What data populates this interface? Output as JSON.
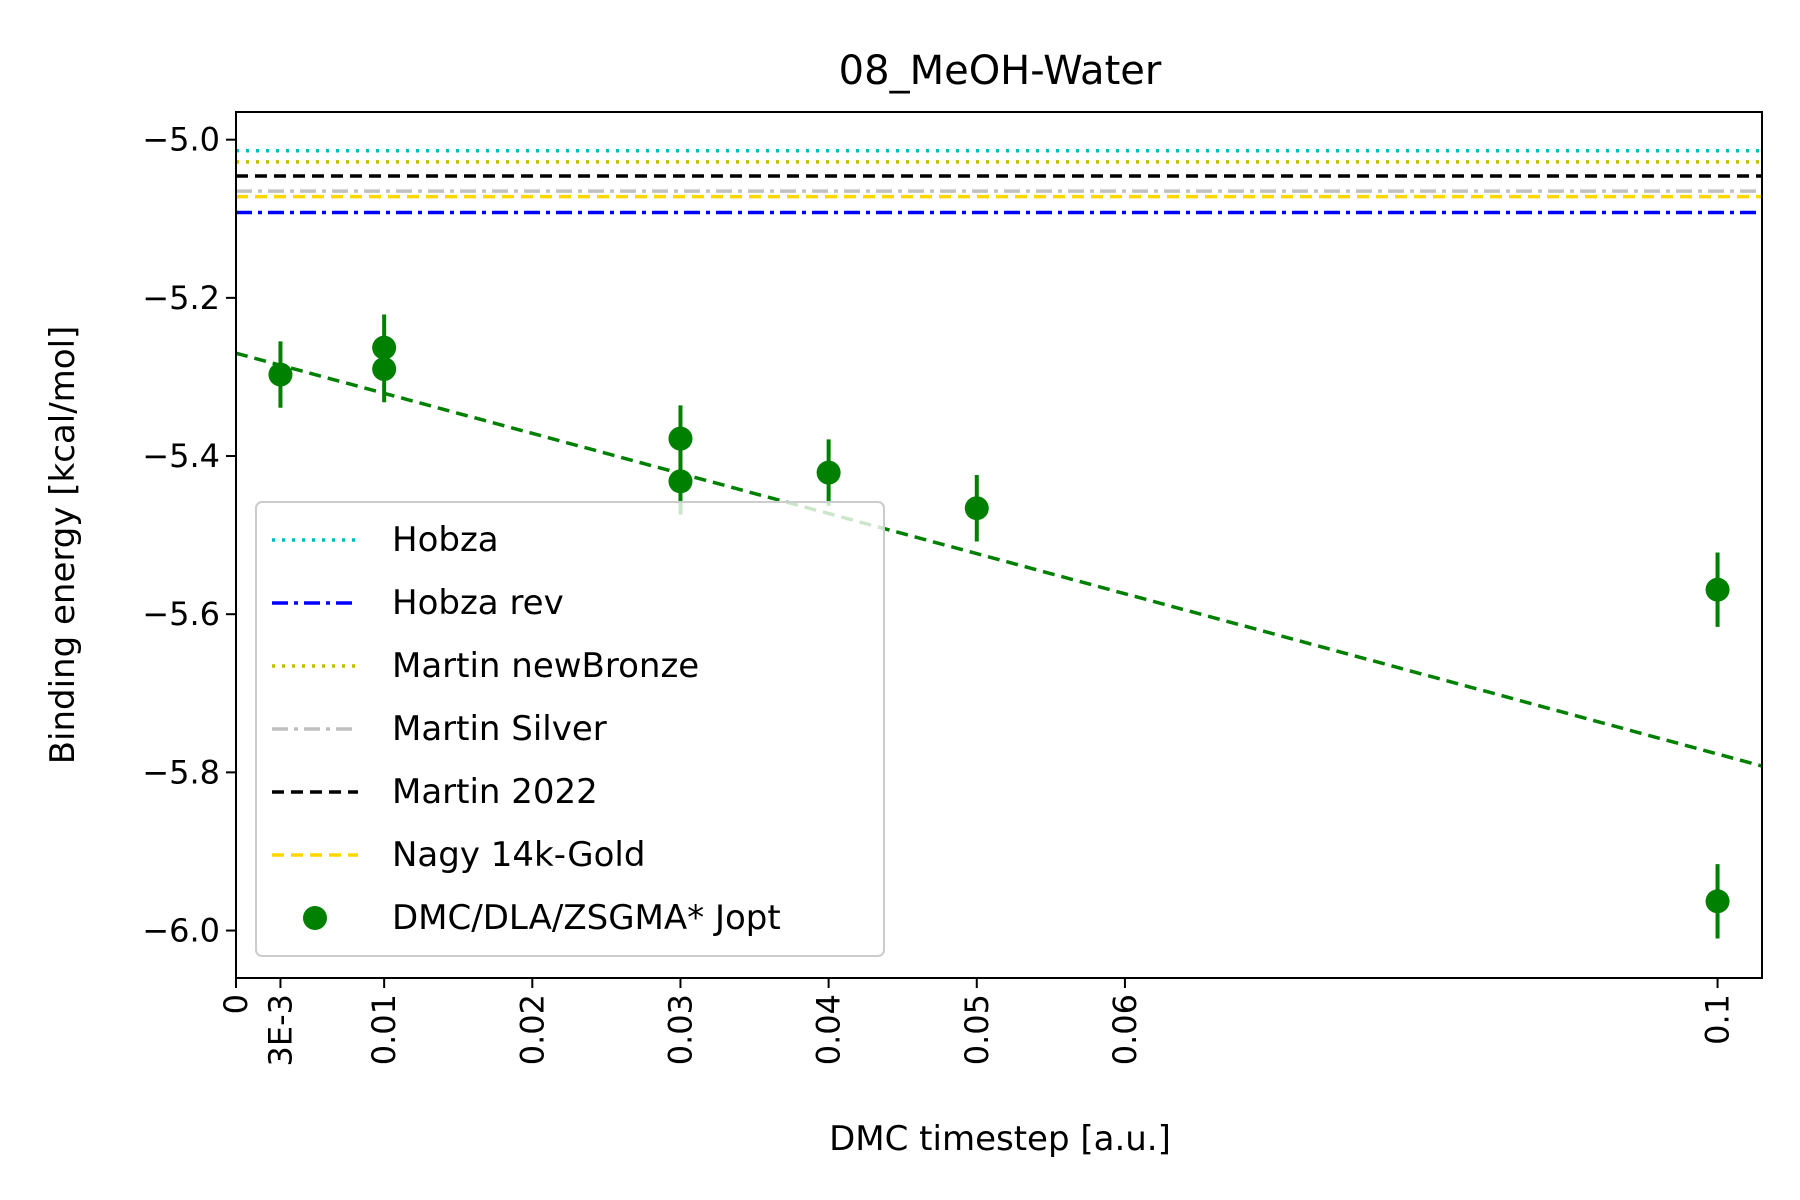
{
  "chart_data": {
    "type": "scatter",
    "title": "08_MeOH-Water",
    "xlabel": "DMC timestep [a.u.]",
    "ylabel": "Binding energy [kcal/mol]",
    "xlim": [
      0,
      0.103
    ],
    "ylim": [
      -6.06,
      -4.965
    ],
    "x_ticks": [
      {
        "value": 0,
        "label": "0"
      },
      {
        "value": 0.003,
        "label": "3E-3"
      },
      {
        "value": 0.01,
        "label": "0.01"
      },
      {
        "value": 0.02,
        "label": "0.02"
      },
      {
        "value": 0.03,
        "label": "0.03"
      },
      {
        "value": 0.04,
        "label": "0.04"
      },
      {
        "value": 0.05,
        "label": "0.05"
      },
      {
        "value": 0.06,
        "label": "0.06"
      },
      {
        "value": 0.1,
        "label": "0.1"
      }
    ],
    "y_ticks": [
      {
        "value": -5.0,
        "label": "−5.0"
      },
      {
        "value": -5.2,
        "label": "−5.2"
      },
      {
        "value": -5.4,
        "label": "−5.4"
      },
      {
        "value": -5.6,
        "label": "−5.6"
      },
      {
        "value": -5.8,
        "label": "−5.8"
      },
      {
        "value": -6.0,
        "label": "−6.0"
      }
    ],
    "reference_lines": [
      {
        "name": "Hobza",
        "y": -5.014,
        "color": "#00bfbf",
        "dash": "dotted"
      },
      {
        "name": "Hobza rev",
        "y": -5.092,
        "color": "#0000ff",
        "dash": "dashdot"
      },
      {
        "name": "Martin newBronze",
        "y": -5.028,
        "color": "#bfbf00",
        "dash": "dotted"
      },
      {
        "name": "Martin Silver",
        "y": -5.065,
        "color": "#c0c0c0",
        "dash": "dashdot"
      },
      {
        "name": "Martin 2022",
        "y": -5.046,
        "color": "#000000",
        "dash": "dashed"
      },
      {
        "name": "Nagy 14k-Gold",
        "y": -5.072,
        "color": "#ffd700",
        "dash": "dashed"
      }
    ],
    "series": [
      {
        "name": "DMC/DLA/ZSGMA* Jopt",
        "color": "#008000",
        "points": [
          {
            "x": 0.003,
            "y": -5.297,
            "err": 0.042
          },
          {
            "x": 0.01,
            "y": -5.263,
            "err": 0.042
          },
          {
            "x": 0.01,
            "y": -5.29,
            "err": 0.042
          },
          {
            "x": 0.03,
            "y": -5.378,
            "err": 0.042
          },
          {
            "x": 0.03,
            "y": -5.432,
            "err": 0.042
          },
          {
            "x": 0.04,
            "y": -5.421,
            "err": 0.042
          },
          {
            "x": 0.05,
            "y": -5.466,
            "err": 0.042
          },
          {
            "x": 0.1,
            "y": -5.569,
            "err": 0.047
          },
          {
            "x": 0.1,
            "y": -5.963,
            "err": 0.047
          }
        ]
      }
    ],
    "fit_line": {
      "x0": 0,
      "y0": -5.27,
      "x1": 0.103,
      "y1": -5.792,
      "color": "#008000",
      "dash": "dashed"
    },
    "legend_position": "lower-left",
    "grid": false
  }
}
